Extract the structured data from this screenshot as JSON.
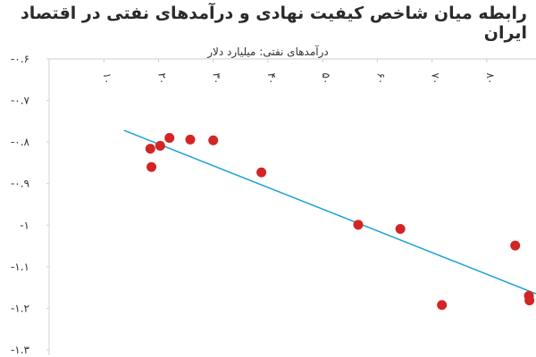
{
  "chart_data": {
    "type": "scatter",
    "title": "رابطه میان شاخص کیفیت نهادی و درآمدهای نفتی در اقتصاد ایران",
    "xlabel": "درآمدهای نفتی: میلیارد دلار",
    "ylabel": "",
    "x_ticks": [
      "۱۰",
      "۲۰",
      "۳۰",
      "۴۰",
      "۵۰",
      "۶۰",
      "۷۰",
      "۸۰"
    ],
    "x_tick_values": [
      10,
      20,
      30,
      40,
      50,
      60,
      70,
      80
    ],
    "y_ticks": [
      "-۰.۶",
      "-۰.۷",
      "-۰.۸",
      "-۰.۹",
      "-۱",
      "-۱.۱",
      "-۱.۲",
      "-۱.۳"
    ],
    "y_tick_values": [
      -0.6,
      -0.7,
      -0.8,
      -0.9,
      -1.0,
      -1.1,
      -1.2,
      -1.3
    ],
    "xlim": [
      0,
      89
    ],
    "ylim": [
      -1.3,
      -0.6
    ],
    "x_axis_position": "top",
    "grid": false,
    "points": [
      {
        "x": 18.5,
        "y": -0.816
      },
      {
        "x": 18.7,
        "y": -0.86
      },
      {
        "x": 20.3,
        "y": -0.809
      },
      {
        "x": 22.0,
        "y": -0.79
      },
      {
        "x": 25.8,
        "y": -0.794
      },
      {
        "x": 30.0,
        "y": -0.796
      },
      {
        "x": 38.8,
        "y": -0.873
      },
      {
        "x": 56.5,
        "y": -0.999
      },
      {
        "x": 64.2,
        "y": -1.009
      },
      {
        "x": 71.8,
        "y": -1.192
      },
      {
        "x": 85.2,
        "y": -1.049
      },
      {
        "x": 87.7,
        "y": -1.17
      },
      {
        "x": 87.8,
        "y": -1.181
      }
    ],
    "trendline": {
      "x": [
        13.7,
        89
      ],
      "y": [
        -0.772,
        -1.165
      ]
    },
    "colors": {
      "point": "#d42424",
      "trendline": "#1aa3d6",
      "axis": "#cfcfcf"
    }
  }
}
